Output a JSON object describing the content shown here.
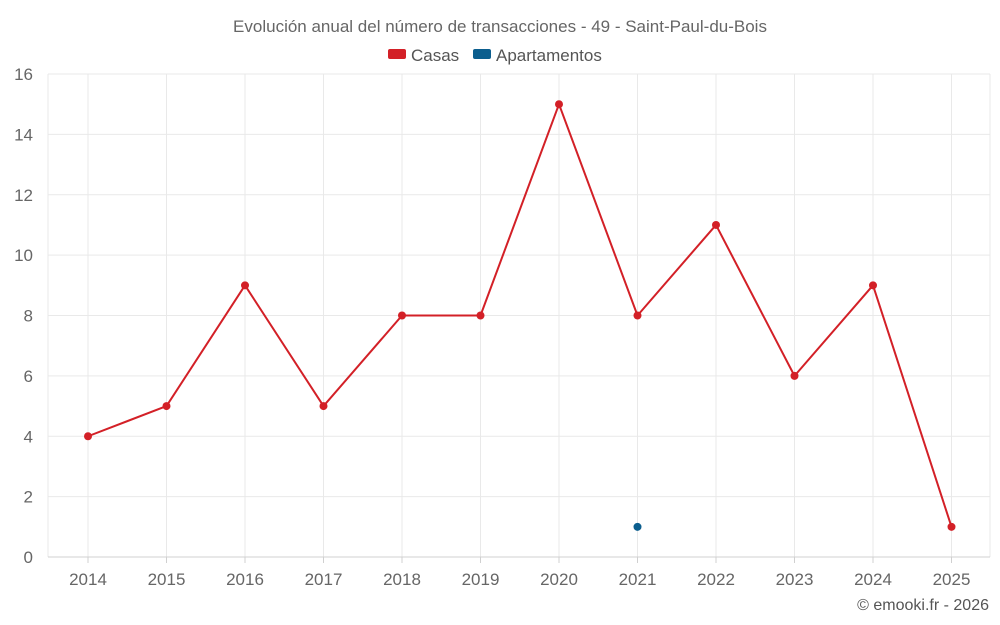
{
  "chart_data": {
    "type": "line",
    "title": "Evolución anual del número de transacciones - 49 - Saint-Paul-du-Bois",
    "categories": [
      "2014",
      "2015",
      "2016",
      "2017",
      "2018",
      "2019",
      "2020",
      "2021",
      "2022",
      "2023",
      "2024",
      "2025"
    ],
    "series": [
      {
        "name": "Casas",
        "color": "#d32027",
        "values": [
          4,
          5,
          9,
          5,
          8,
          8,
          15,
          8,
          11,
          6,
          9,
          1
        ]
      },
      {
        "name": "Apartamentos",
        "color": "#0b5e8e",
        "values": [
          null,
          null,
          null,
          null,
          null,
          null,
          null,
          1,
          null,
          null,
          null,
          null
        ]
      }
    ],
    "y_ticks": [
      "0",
      "2",
      "4",
      "6",
      "8",
      "10",
      "12",
      "14",
      "16"
    ],
    "ylim": [
      0,
      16
    ],
    "grid": true,
    "legend_position": "top-center"
  },
  "credit": "© emooki.fr - 2026"
}
